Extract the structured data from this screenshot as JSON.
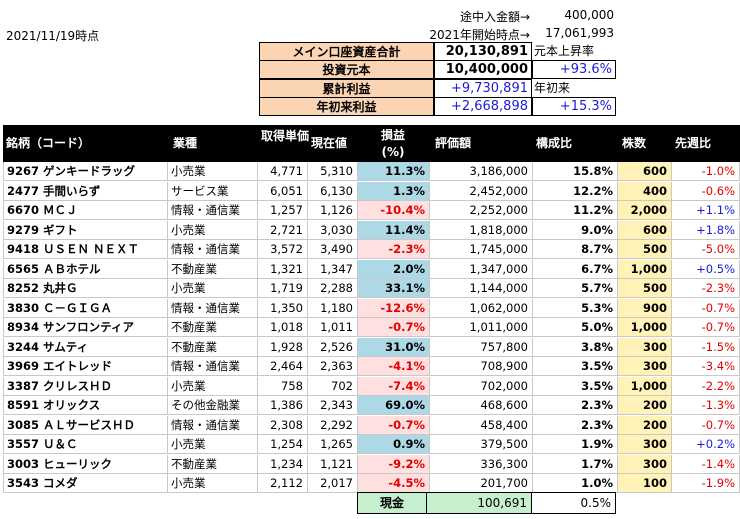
{
  "date": "2021/11/19時点",
  "top_info": [
    {
      "label": "途中入金額→",
      "value": "400,000"
    },
    {
      "label": "2021年開始時点→",
      "value": "17,061,993"
    }
  ],
  "summary": [
    {
      "label": "メイン口座資産合計",
      "value": "20,130,891",
      "note": "元本上昇率"
    },
    {
      "label": "投資元本",
      "value": "10,400,000",
      "note": "+93.6%"
    },
    {
      "label": "累計利益",
      "value": "+9,730,891",
      "note": "年初来"
    },
    {
      "label": "年初来利益",
      "value": "+2,668,898",
      "note": "+15.3%"
    }
  ],
  "headers": {
    "name": "銘柄（コード）",
    "sector": "業種",
    "cost": "取得単価",
    "price": "現在値",
    "pl": "損益",
    "pl_unit": "(%)",
    "value": "評価額",
    "ratio": "構成比",
    "shares": "株数",
    "week": "先週比"
  },
  "rows": [
    {
      "name": "9267 ゲンキードラッグ",
      "sector": "小売業",
      "cost": "4,771",
      "price": "5,310",
      "pl": "11.3%",
      "value": "3,186,000",
      "ratio": "15.8%",
      "shares": "600",
      "week": "-1.0%"
    },
    {
      "name": "2477 手間いらず",
      "sector": "サービス業",
      "cost": "6,051",
      "price": "6,130",
      "pl": "1.3%",
      "value": "2,452,000",
      "ratio": "12.2%",
      "shares": "400",
      "week": "-0.6%"
    },
    {
      "name": "6670 ＭＣＪ",
      "sector": "情報・通信業",
      "cost": "1,257",
      "price": "1,126",
      "pl": "-10.4%",
      "value": "2,252,000",
      "ratio": "11.2%",
      "shares": "2,000",
      "week": "+1.1%"
    },
    {
      "name": "9279 ギフト",
      "sector": "小売業",
      "cost": "2,721",
      "price": "3,030",
      "pl": "11.4%",
      "value": "1,818,000",
      "ratio": "9.0%",
      "shares": "600",
      "week": "+1.8%"
    },
    {
      "name": "9418 ＵＳＥＮ ＮＥＸＴ",
      "sector": "情報・通信業",
      "cost": "3,572",
      "price": "3,490",
      "pl": "-2.3%",
      "value": "1,745,000",
      "ratio": "8.7%",
      "shares": "500",
      "week": "-5.0%"
    },
    {
      "name": "6565 ＡＢホテル",
      "sector": "不動産業",
      "cost": "1,321",
      "price": "1,347",
      "pl": "2.0%",
      "value": "1,347,000",
      "ratio": "6.7%",
      "shares": "1,000",
      "week": "+0.5%"
    },
    {
      "name": "8252 丸井Ｇ",
      "sector": "小売業",
      "cost": "1,719",
      "price": "2,288",
      "pl": "33.1%",
      "value": "1,144,000",
      "ratio": "5.7%",
      "shares": "500",
      "week": "-2.3%"
    },
    {
      "name": "3830 Ｃ－ＧＩＧＡ",
      "sector": "情報・通信業",
      "cost": "1,350",
      "price": "1,180",
      "pl": "-12.6%",
      "value": "1,062,000",
      "ratio": "5.3%",
      "shares": "900",
      "week": "-0.7%"
    },
    {
      "name": "8934 サンフロンティア",
      "sector": "不動産業",
      "cost": "1,018",
      "price": "1,011",
      "pl": "-0.7%",
      "value": "1,011,000",
      "ratio": "5.0%",
      "shares": "1,000",
      "week": "-0.7%"
    },
    {
      "name": "3244 サムティ",
      "sector": "不動産業",
      "cost": "1,928",
      "price": "2,526",
      "pl": "31.0%",
      "value": "757,800",
      "ratio": "3.8%",
      "shares": "300",
      "week": "-1.5%"
    },
    {
      "name": "3969 エイトレッド",
      "sector": "情報・通信業",
      "cost": "2,464",
      "price": "2,363",
      "pl": "-4.1%",
      "value": "708,900",
      "ratio": "3.5%",
      "shares": "300",
      "week": "-3.4%"
    },
    {
      "name": "3387 クリレスＨＤ",
      "sector": "小売業",
      "cost": "758",
      "price": "702",
      "pl": "-7.4%",
      "value": "702,000",
      "ratio": "3.5%",
      "shares": "1,000",
      "week": "-2.2%"
    },
    {
      "name": "8591 オリックス",
      "sector": "その他金融業",
      "cost": "1,386",
      "price": "2,343",
      "pl": "69.0%",
      "value": "468,600",
      "ratio": "2.3%",
      "shares": "200",
      "week": "-1.3%"
    },
    {
      "name": "3085 ＡＬサービスＨＤ",
      "sector": "情報・通信業",
      "cost": "2,308",
      "price": "2,292",
      "pl": "-0.7%",
      "value": "458,400",
      "ratio": "2.3%",
      "shares": "200",
      "week": "-0.7%"
    },
    {
      "name": "3557 Ｕ＆Ｃ",
      "sector": "小売業",
      "cost": "1,254",
      "price": "1,265",
      "pl": "0.9%",
      "value": "379,500",
      "ratio": "1.9%",
      "shares": "300",
      "week": "+0.2%"
    },
    {
      "name": "3003 ヒューリック",
      "sector": "不動産業",
      "cost": "1,234",
      "price": "1,121",
      "pl": "-9.2%",
      "value": "336,300",
      "ratio": "1.7%",
      "shares": "300",
      "week": "-1.4%"
    },
    {
      "name": "3543 コメダ",
      "sector": "小売業",
      "cost": "2,112",
      "price": "2,017",
      "pl": "-4.5%",
      "value": "201,700",
      "ratio": "1.0%",
      "shares": "100",
      "week": "-1.9%"
    }
  ],
  "cash": {
    "label": "現金",
    "value": "100,691",
    "ratio": "0.5%"
  },
  "colors": {
    "positive_pl": "#add8e6",
    "negative_pl": "#ffe0e0",
    "shares_bg": "#fff3b8",
    "summary_bg": "#fbd4b4",
    "cash_bg": "#c6efce",
    "blue": "#1c1cd6",
    "red": "#e00000"
  }
}
